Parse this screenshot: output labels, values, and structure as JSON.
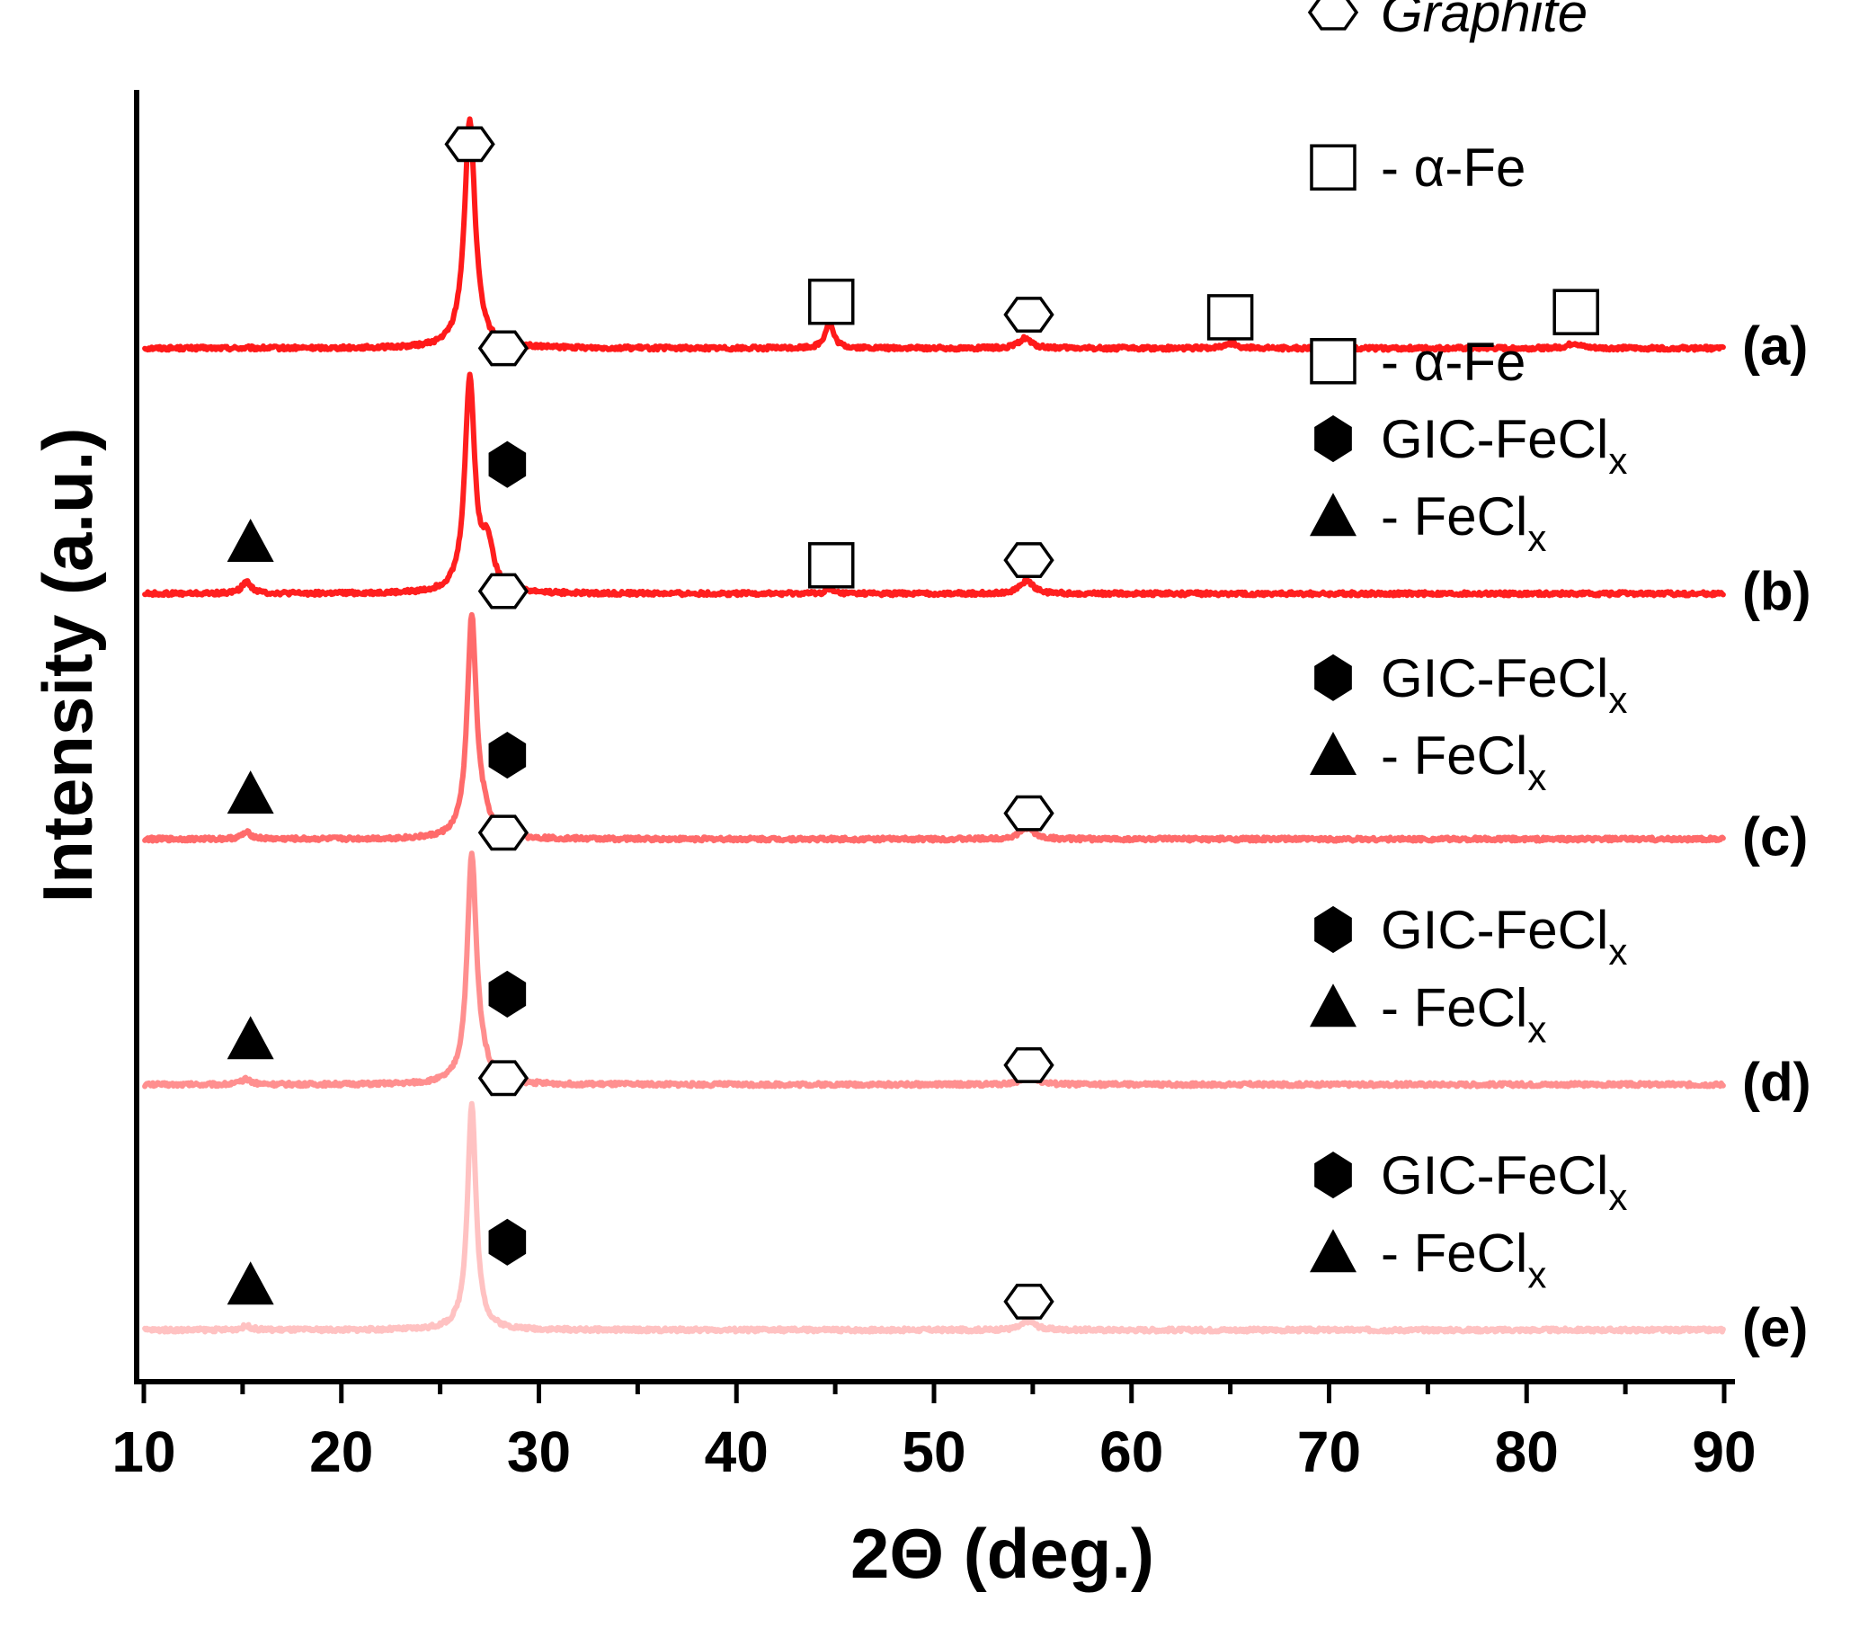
{
  "chart_data": {
    "type": "line",
    "title": "",
    "xlabel": "2Θ (deg.)",
    "ylabel": "Intensity (a.u.)",
    "xlim": [
      10,
      90
    ],
    "x_ticks": [
      "10",
      "20",
      "30",
      "40",
      "50",
      "60",
      "70",
      "80",
      "90"
    ],
    "y_ticks": [],
    "grid": false,
    "series": [
      {
        "name": "(a)",
        "label": "(a)",
        "color": "#ff1a1a",
        "baseline": 0.8,
        "peaks": [
          {
            "x": 26.5,
            "height": 0.176,
            "width": 0.33
          },
          {
            "x": 44.7,
            "height": 0.02,
            "width": 0.25
          },
          {
            "x": 54.6,
            "height": 0.008,
            "width": 0.35
          },
          {
            "x": 65.0,
            "height": 0.004,
            "width": 0.35
          },
          {
            "x": 82.4,
            "height": 0.004,
            "width": 0.35
          }
        ],
        "markers": [
          {
            "x": 26.5,
            "symbol": "hexagon-open",
            "level": 0.958
          },
          {
            "x": 44.8,
            "symbol": "square-open",
            "level": 0.836
          },
          {
            "x": 54.8,
            "symbol": "hexagon-open",
            "level": 0.826
          },
          {
            "x": 65.0,
            "symbol": "square-open",
            "level": 0.824
          },
          {
            "x": 82.5,
            "symbol": "square-open",
            "level": 0.828
          }
        ],
        "legend": [
          {
            "symbol": "hexagon-open",
            "prefix": "",
            "text": "Graphite",
            "sub": "",
            "italic": true,
            "level": 1.06
          },
          {
            "symbol": "square-open",
            "prefix": "- ",
            "text": "α-Fe",
            "sub": "",
            "italic": false,
            "level": 0.94
          }
        ]
      },
      {
        "name": "(b)",
        "label": "(b)",
        "color": "#ff1f1f",
        "baseline": 0.61,
        "peaks": [
          {
            "x": 26.5,
            "height": 0.165,
            "width": 0.3
          },
          {
            "x": 27.4,
            "height": 0.035,
            "width": 0.35
          },
          {
            "x": 15.2,
            "height": 0.009,
            "width": 0.3
          },
          {
            "x": 44.7,
            "height": 0.003,
            "width": 0.25
          },
          {
            "x": 54.7,
            "height": 0.01,
            "width": 0.4
          }
        ],
        "markers": [
          {
            "x": 28.2,
            "symbol": "hexagon-open",
            "level": 0.8
          },
          {
            "x": 28.4,
            "symbol": "hexagon-filled",
            "level": 0.71
          },
          {
            "x": 15.4,
            "symbol": "triangle-filled",
            "level": 0.65
          },
          {
            "x": 44.8,
            "symbol": "square-open",
            "level": 0.632
          },
          {
            "x": 54.8,
            "symbol": "hexagon-open",
            "level": 0.636
          }
        ],
        "legend": [
          {
            "symbol": "square-open",
            "prefix": "- ",
            "text": "α-Fe",
            "sub": "",
            "italic": false,
            "level": 0.79
          },
          {
            "symbol": "hexagon-filled",
            "prefix": "",
            "text": "GIC-FeCl",
            "sub": "x",
            "italic": false,
            "level": 0.73
          },
          {
            "symbol": "triangle-filled",
            "prefix": "- ",
            "text": "FeCl",
            "sub": "x",
            "italic": false,
            "level": 0.67
          }
        ]
      },
      {
        "name": "(c)",
        "label": "(c)",
        "color": "#ff6b6b",
        "baseline": 0.42,
        "peaks": [
          {
            "x": 26.6,
            "height": 0.17,
            "width": 0.28
          },
          {
            "x": 27.2,
            "height": 0.012,
            "width": 0.4
          },
          {
            "x": 15.2,
            "height": 0.005,
            "width": 0.3
          },
          {
            "x": 54.7,
            "height": 0.009,
            "width": 0.4
          }
        ],
        "markers": [
          {
            "x": 28.2,
            "symbol": "hexagon-open",
            "level": 0.612
          },
          {
            "x": 28.4,
            "symbol": "hexagon-filled",
            "level": 0.485
          },
          {
            "x": 15.4,
            "symbol": "triangle-filled",
            "level": 0.455
          },
          {
            "x": 54.8,
            "symbol": "hexagon-open",
            "level": 0.44
          }
        ],
        "legend": [
          {
            "symbol": "hexagon-filled",
            "prefix": "",
            "text": "GIC-FeCl",
            "sub": "x",
            "italic": false,
            "level": 0.545
          },
          {
            "symbol": "triangle-filled",
            "prefix": "- ",
            "text": "FeCl",
            "sub": "x",
            "italic": false,
            "level": 0.485
          }
        ]
      },
      {
        "name": "(d)",
        "label": "(d)",
        "color": "#ff8f8f",
        "baseline": 0.23,
        "peaks": [
          {
            "x": 26.6,
            "height": 0.175,
            "width": 0.28
          },
          {
            "x": 27.1,
            "height": 0.01,
            "width": 0.4
          },
          {
            "x": 15.2,
            "height": 0.004,
            "width": 0.3
          },
          {
            "x": 54.8,
            "height": 0.008,
            "width": 0.4
          }
        ],
        "markers": [
          {
            "x": 28.2,
            "symbol": "hexagon-open",
            "level": 0.425
          },
          {
            "x": 28.4,
            "symbol": "hexagon-filled",
            "level": 0.3
          },
          {
            "x": 15.4,
            "symbol": "triangle-filled",
            "level": 0.265
          },
          {
            "x": 54.8,
            "symbol": "hexagon-open",
            "level": 0.245
          }
        ],
        "legend": [
          {
            "symbol": "hexagon-filled",
            "prefix": "",
            "text": "GIC-FeCl",
            "sub": "x",
            "italic": false,
            "level": 0.35
          },
          {
            "symbol": "triangle-filled",
            "prefix": "- ",
            "text": "FeCl",
            "sub": "x",
            "italic": false,
            "level": 0.29
          }
        ]
      },
      {
        "name": "(e)",
        "label": "(e)",
        "color": "#ffc2c2",
        "baseline": 0.04,
        "peaks": [
          {
            "x": 26.6,
            "height": 0.175,
            "width": 0.26
          },
          {
            "x": 15.2,
            "height": 0.003,
            "width": 0.3
          },
          {
            "x": 54.8,
            "height": 0.007,
            "width": 0.4
          }
        ],
        "markers": [
          {
            "x": 28.2,
            "symbol": "hexagon-open",
            "level": 0.235
          },
          {
            "x": 28.4,
            "symbol": "hexagon-filled",
            "level": 0.108
          },
          {
            "x": 15.4,
            "symbol": "triangle-filled",
            "level": 0.075
          },
          {
            "x": 54.8,
            "symbol": "hexagon-open",
            "level": 0.062
          }
        ],
        "legend": [
          {
            "symbol": "hexagon-filled",
            "prefix": "",
            "text": "GIC-FeCl",
            "sub": "x",
            "italic": false,
            "level": 0.16
          },
          {
            "symbol": "triangle-filled",
            "prefix": "- ",
            "text": "FeCl",
            "sub": "x",
            "italic": false,
            "level": 0.1
          }
        ]
      }
    ]
  }
}
